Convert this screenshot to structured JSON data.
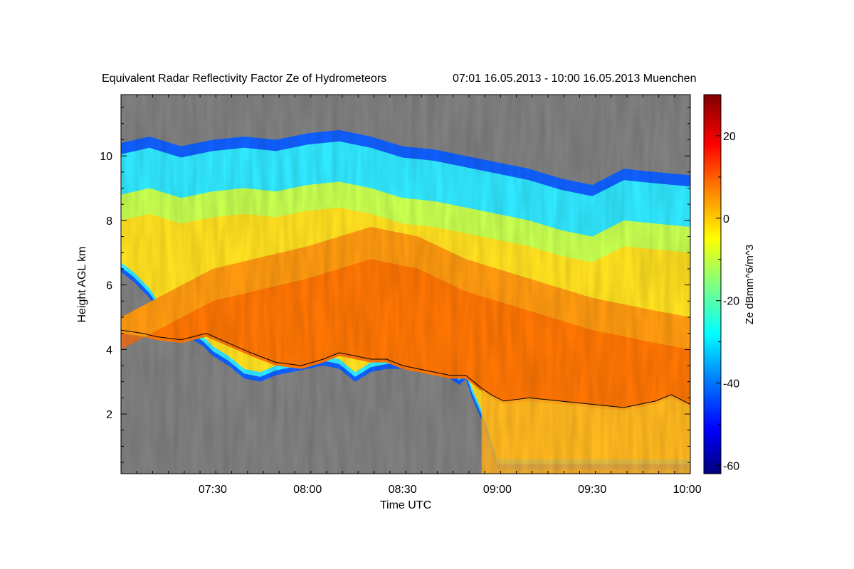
{
  "chart_data": {
    "type": "heatmap",
    "title": "Equivalent Radar Reflectivity Factor Ze of Hydrometeors",
    "time_range_label": "07:01 16.05.2013 - 10:00 16.05.2013 Muenchen",
    "xlabel": "Time UTC",
    "ylabel": "Height AGL km",
    "x_ticks": [
      "07:30",
      "08:00",
      "08:30",
      "09:00",
      "09:30",
      "10:00"
    ],
    "x_tick_minutes": [
      30,
      60,
      90,
      120,
      150,
      180
    ],
    "xlim_minutes": [
      1,
      181
    ],
    "y_ticks": [
      "2",
      "4",
      "6",
      "8",
      "10"
    ],
    "y_tick_values": [
      2,
      4,
      6,
      8,
      10
    ],
    "ylim_km": [
      0.15,
      11.9
    ],
    "colorbar": {
      "label": "Ze dBmm^6/m^3",
      "range": [
        -62,
        30
      ],
      "ticks": [
        "20",
        "0",
        "-20",
        "-40",
        "-60"
      ],
      "tick_values": [
        20,
        0,
        -20,
        -40,
        -60
      ]
    },
    "no_data_color": "#808080",
    "echo_top_km": [
      [
        1,
        10.4
      ],
      [
        10,
        10.6
      ],
      [
        20,
        10.3
      ],
      [
        30,
        10.5
      ],
      [
        40,
        10.6
      ],
      [
        50,
        10.5
      ],
      [
        60,
        10.7
      ],
      [
        70,
        10.8
      ],
      [
        80,
        10.6
      ],
      [
        90,
        10.3
      ],
      [
        100,
        10.2
      ],
      [
        110,
        10.0
      ],
      [
        120,
        9.8
      ],
      [
        130,
        9.6
      ],
      [
        140,
        9.3
      ],
      [
        150,
        9.1
      ],
      [
        160,
        9.6
      ],
      [
        170,
        9.5
      ],
      [
        181,
        9.4
      ]
    ],
    "echo_base_km": [
      [
        1,
        6.4
      ],
      [
        5,
        6.1
      ],
      [
        10,
        5.6
      ],
      [
        14,
        5.0
      ],
      [
        18,
        4.6
      ],
      [
        22,
        4.4
      ],
      [
        27,
        4.1
      ],
      [
        30,
        3.8
      ],
      [
        35,
        3.5
      ],
      [
        40,
        3.1
      ],
      [
        45,
        3.0
      ],
      [
        50,
        3.2
      ],
      [
        55,
        3.3
      ],
      [
        60,
        3.4
      ],
      [
        65,
        3.5
      ],
      [
        70,
        3.4
      ],
      [
        75,
        3.0
      ],
      [
        80,
        3.3
      ],
      [
        85,
        3.4
      ],
      [
        90,
        3.4
      ],
      [
        95,
        3.3
      ],
      [
        100,
        3.2
      ],
      [
        105,
        3.1
      ],
      [
        108,
        2.9
      ],
      [
        110,
        3.1
      ],
      [
        112,
        2.5
      ],
      [
        116,
        1.6
      ],
      [
        120,
        0.3
      ],
      [
        181,
        0.3
      ]
    ],
    "core_max_km": [
      [
        1,
        5.0
      ],
      [
        30,
        6.5
      ],
      [
        60,
        7.2
      ],
      [
        80,
        7.8
      ],
      [
        95,
        7.5
      ],
      [
        110,
        6.8
      ],
      [
        130,
        6.2
      ],
      [
        150,
        5.6
      ],
      [
        170,
        5.2
      ],
      [
        181,
        5.0
      ]
    ],
    "melting_layer_km": [
      [
        1,
        4.6
      ],
      [
        8,
        4.5
      ],
      [
        12,
        4.4
      ],
      [
        20,
        4.3
      ],
      [
        28,
        4.5
      ],
      [
        35,
        4.2
      ],
      [
        42,
        3.9
      ],
      [
        50,
        3.6
      ],
      [
        58,
        3.5
      ],
      [
        65,
        3.7
      ],
      [
        70,
        3.9
      ],
      [
        75,
        3.8
      ],
      [
        80,
        3.7
      ],
      [
        85,
        3.7
      ],
      [
        90,
        3.5
      ],
      [
        95,
        3.4
      ],
      [
        100,
        3.3
      ],
      [
        105,
        3.2
      ],
      [
        110,
        3.2
      ],
      [
        115,
        2.8
      ],
      [
        118,
        2.6
      ],
      [
        122,
        2.4
      ],
      [
        130,
        2.5
      ],
      [
        140,
        2.4
      ],
      [
        150,
        2.3
      ],
      [
        160,
        2.2
      ],
      [
        170,
        2.4
      ],
      [
        175,
        2.6
      ],
      [
        181,
        2.3
      ]
    ]
  }
}
